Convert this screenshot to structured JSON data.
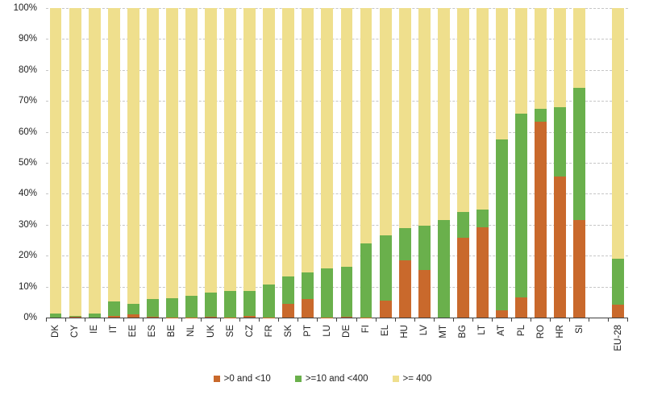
{
  "chart_data": {
    "type": "bar",
    "stacked": true,
    "orientation": "vertical",
    "unit": "percent",
    "title": "",
    "xlabel": "",
    "ylabel": "",
    "ylim": [
      0,
      100
    ],
    "yticks": [
      "100%",
      "90%",
      "80%",
      "70%",
      "60%",
      "50%",
      "40%",
      "30%",
      "20%",
      "10%",
      "0%"
    ],
    "grid": "horizontal-dashed",
    "legend_position": "bottom-center",
    "separated_category": "EU-28",
    "categories": [
      "DK",
      "CY",
      "IE",
      "IT",
      "EE",
      "ES",
      "BE",
      "NL",
      "UK",
      "SE",
      "CZ",
      "FR",
      "SK",
      "PT",
      "LU",
      "DE",
      "FI",
      "EL",
      "HU",
      "LV",
      "MT",
      "BG",
      "LT",
      "AT",
      "PL",
      "RO",
      "HR",
      "SI",
      "EU-28"
    ],
    "series": [
      {
        "name": ">0 and <10",
        "color": "#c9692c",
        "values": [
          0,
          0.2,
          0,
          0.5,
          1.0,
          0.3,
          0.1,
          0.1,
          0.3,
          0.1,
          0.4,
          0.1,
          4.3,
          6.0,
          0.1,
          0.2,
          0.1,
          5.5,
          18.6,
          15.3,
          0,
          25.7,
          29.1,
          2.3,
          6.4,
          63.2,
          45.7,
          31.5,
          4.1
        ]
      },
      {
        "name": ">=10 and <400",
        "color": "#6ab04c",
        "values": [
          1.2,
          0.3,
          1.2,
          4.7,
          3.5,
          5.8,
          6.2,
          7.0,
          7.7,
          8.4,
          8.2,
          10.6,
          9.1,
          8.7,
          15.7,
          16.1,
          23.9,
          21.0,
          10.2,
          14.4,
          31.4,
          8.4,
          5.8,
          55.2,
          59.4,
          4.2,
          22.3,
          42.7,
          14.9
        ]
      },
      {
        "name": ">= 400",
        "color": "#efdf8d",
        "values": [
          98.8,
          99.5,
          98.8,
          94.8,
          95.5,
          93.9,
          93.7,
          92.9,
          92.0,
          91.5,
          91.4,
          89.3,
          86.6,
          85.3,
          84.2,
          83.7,
          76.0,
          73.5,
          71.2,
          70.3,
          68.6,
          65.9,
          65.1,
          42.5,
          34.2,
          32.6,
          32.0,
          25.8,
          81.0
        ]
      }
    ],
    "axis_color": "#3f3f3f",
    "gridline_color": "#c6c6c6",
    "label_color": "#1f1f1f"
  }
}
